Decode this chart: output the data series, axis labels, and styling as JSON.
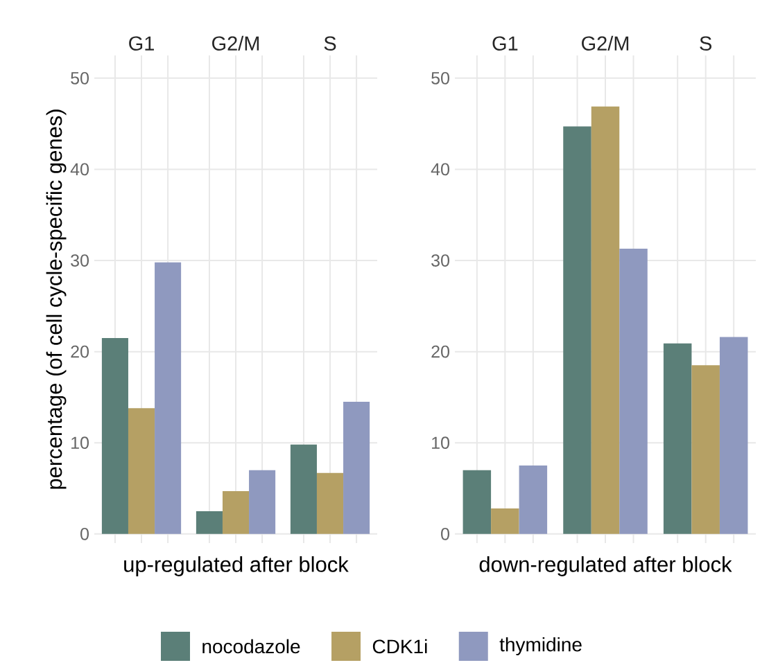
{
  "chart_data": [
    {
      "type": "bar",
      "categories": [
        "G1",
        "G2/M",
        "S"
      ],
      "xlabel": "up-regulated after block",
      "ylabel": "percentage (of cell cycle-specific genes)",
      "ylim": [
        -1,
        52.5
      ],
      "yticks": [
        0,
        10,
        20,
        30,
        40,
        50
      ],
      "grid": true,
      "legend": "bottom",
      "series": [
        {
          "name": "nocodazole",
          "color": "#5b7f78",
          "values": [
            21.5,
            2.5,
            9.8
          ]
        },
        {
          "name": "CDK1i",
          "color": "#b5a064",
          "values": [
            13.8,
            4.7,
            6.7
          ]
        },
        {
          "name": "thymidine",
          "color": "#8f99bf",
          "values": [
            29.8,
            7.0,
            14.5
          ]
        }
      ]
    },
    {
      "type": "bar",
      "categories": [
        "G1",
        "G2/M",
        "S"
      ],
      "xlabel": "down-regulated after block",
      "ylim": [
        -1,
        52.5
      ],
      "yticks": [
        0,
        10,
        20,
        30,
        40,
        50
      ],
      "grid": true,
      "series": [
        {
          "color": "#5b7f78",
          "values": [
            7.0,
            44.7,
            20.9
          ]
        },
        {
          "color": "#b5a064",
          "values": [
            2.8,
            46.9,
            18.5
          ]
        },
        {
          "color": "#8f99bf",
          "values": [
            7.5,
            31.3,
            21.6
          ]
        }
      ]
    }
  ]
}
